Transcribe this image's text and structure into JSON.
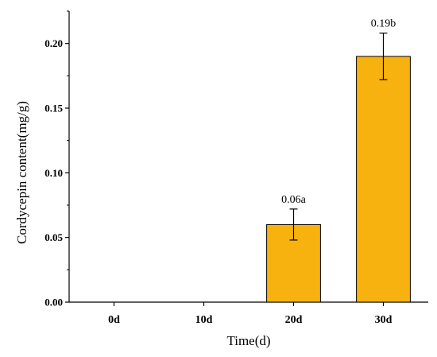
{
  "chart_data": {
    "type": "bar",
    "title": "",
    "xlabel": "Time(d)",
    "ylabel": "Cordycepin content(mg/g)",
    "categories": [
      "0d",
      "10d",
      "20d",
      "30d"
    ],
    "values": [
      0,
      0,
      0.06,
      0.19
    ],
    "errors": [
      0,
      0,
      0.012,
      0.018
    ],
    "data_labels": [
      "",
      "",
      "0.06a",
      "0.19b"
    ],
    "ylim": [
      0,
      0.225
    ],
    "yticks": [
      0.0,
      0.05,
      0.1,
      0.15,
      0.2
    ],
    "ytick_labels": [
      "0.00",
      "0.05",
      "0.10",
      "0.15",
      "0.20"
    ],
    "grid": false,
    "bar_color": "#F7B210",
    "bar_edge_color": "#000000"
  }
}
